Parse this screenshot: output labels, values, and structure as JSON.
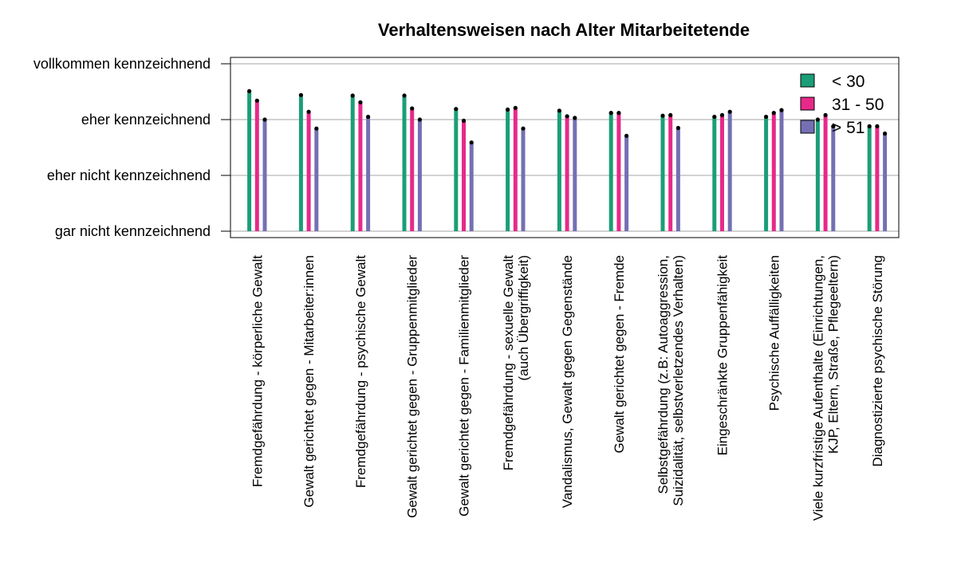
{
  "chart_data": {
    "type": "bar",
    "title": "Verhaltensweisen nach Alter Mitarbeitetende",
    "xlabel": "",
    "ylabel": "",
    "ylim": [
      1,
      4
    ],
    "y_tick_values": [
      1,
      2,
      3,
      4
    ],
    "y_tick_labels": [
      "gar nicht kennzeichnend",
      "eher nicht kennzeichnend",
      "eher kennzeichnend",
      "vollkommen kennzeichnend"
    ],
    "grid": "horizontal",
    "legend_position": "top-right",
    "categories": [
      [
        "Fremdgefährdung - körperliche Gewalt"
      ],
      [
        "Gewalt gerichtet gegen - Mitarbeiter:innen"
      ],
      [
        "Fremdgefährdung - psychische Gewalt"
      ],
      [
        "Gewalt gerichtet gegen - Gruppenmitglieder"
      ],
      [
        "Gewalt gerichtet gegen - Familienmitglieder"
      ],
      [
        "Fremdgefährdung - sexuelle Gewalt",
        "(auch Übergriffigkeit)"
      ],
      [
        "Vandalismus, Gewalt gegen Gegenstände"
      ],
      [
        "Gewalt gerichtet gegen - Fremde"
      ],
      [
        "Selbstgefährdung (z.B: Autoaggression,",
        "Suizidalität, selbstverletzendes Verhalten)"
      ],
      [
        "Eingeschränkte Gruppenfähigkeit"
      ],
      [
        "Psychische Auffälligkeiten"
      ],
      [
        "Viele kurzfristige Aufenthalte (Einrichtungen,",
        "KJP, Eltern, Straße, Pflegeeltern)"
      ],
      [
        "Diagnostizierte psychische Störung"
      ]
    ],
    "series": [
      {
        "name": "< 30",
        "color": "#1b9e77",
        "values": [
          3.51,
          3.44,
          3.43,
          3.43,
          3.19,
          3.18,
          3.16,
          3.12,
          3.07,
          3.05,
          3.05,
          3.0,
          2.88
        ]
      },
      {
        "name": "31 - 50",
        "color": "#e7298a",
        "values": [
          3.34,
          3.14,
          3.31,
          3.2,
          2.98,
          3.21,
          3.06,
          3.12,
          3.08,
          3.08,
          3.12,
          3.08,
          2.88
        ]
      },
      {
        "name": "> 51",
        "color": "#7570b3",
        "values": [
          3.0,
          2.84,
          3.05,
          3.0,
          2.59,
          2.84,
          3.03,
          2.71,
          2.85,
          3.14,
          3.17,
          2.88,
          2.75
        ]
      }
    ]
  }
}
